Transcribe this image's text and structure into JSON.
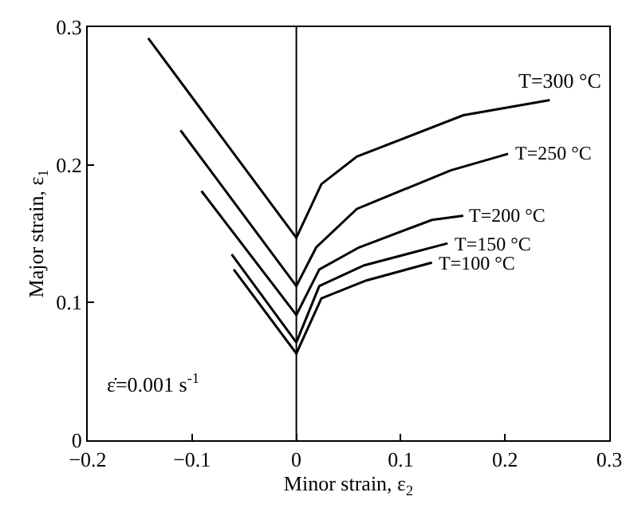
{
  "chart_data": {
    "type": "line",
    "xlabel": "Minor strain, ε$_{2}$",
    "ylabel": "Major strain, ε$_{1}$",
    "xlim": [
      -0.2,
      0.3
    ],
    "xticks": [
      {
        "value": -0.2,
        "label": "−0.2"
      },
      {
        "value": -0.1,
        "label": "−0.1"
      },
      0,
      0.1,
      0.2,
      0.3
    ],
    "ylim": [
      0,
      0.3
    ],
    "yticks": [
      0,
      0.1,
      0.2,
      0.3
    ],
    "legend": false,
    "marker": "none",
    "line_style": "solid",
    "ref_lines": [
      {
        "axis": "x",
        "value": 0,
        "color": "#000000"
      }
    ],
    "annotations": [
      "ε̇=0.001 s$^{-1}$"
    ],
    "series": [
      {
        "name": "T=300 °C",
        "color": "#000000",
        "x": [
          -0.142,
          0,
          0.024,
          0.058,
          0.16,
          0.243
        ],
        "values": [
          0.292,
          0.147,
          0.186,
          0.206,
          0.236,
          0.247
        ]
      },
      {
        "name": "T=250 °C",
        "color": "#000000",
        "x": [
          -0.111,
          0,
          0.019,
          0.058,
          0.148,
          0.203
        ],
        "values": [
          0.225,
          0.112,
          0.14,
          0.168,
          0.196,
          0.208
        ]
      },
      {
        "name": "T=200 °C",
        "color": "#000000",
        "x": [
          -0.091,
          0,
          0.022,
          0.06,
          0.13,
          0.16
        ],
        "values": [
          0.181,
          0.091,
          0.124,
          0.14,
          0.16,
          0.163
        ]
      },
      {
        "name": "T=150 °C",
        "color": "#000000",
        "x": [
          -0.062,
          0,
          0.022,
          0.065,
          0.145
        ],
        "values": [
          0.135,
          0.071,
          0.112,
          0.127,
          0.143
        ]
      },
      {
        "name": "T=100 °C",
        "color": "#000000",
        "x": [
          -0.06,
          0,
          0.024,
          0.067,
          0.13
        ],
        "values": [
          0.124,
          0.063,
          0.103,
          0.116,
          0.129
        ]
      }
    ]
  }
}
